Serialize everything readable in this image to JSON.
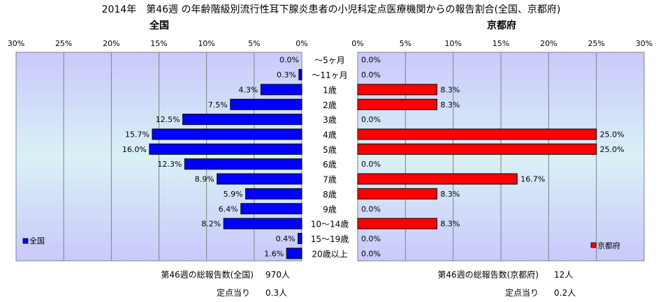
{
  "title": "2014年　第46週 の年齢階級別流行性耳下腺炎患者の小児科定点医療機関からの報告割合(全国、京都府)",
  "chart_data": [
    {
      "type": "bar",
      "orientation": "horizontal",
      "direction": "right-to-left",
      "title": "全国",
      "categories": [
        "～5ヶ月",
        "～11ヶ月",
        "1歳",
        "2歳",
        "3歳",
        "4歳",
        "5歳",
        "6歳",
        "7歳",
        "8歳",
        "9歳",
        "10～14歳",
        "15～19歳",
        "20歳以上"
      ],
      "series": [
        {
          "name": "全国",
          "color": "#0000ff",
          "values": [
            0.0,
            0.3,
            4.3,
            7.5,
            12.5,
            15.7,
            16.0,
            12.3,
            8.9,
            5.9,
            6.4,
            8.2,
            0.4,
            1.6
          ],
          "labels": [
            "0.0%",
            "0.3%",
            "4.3%",
            "7.5%",
            "12.5%",
            "15.7%",
            "16.0%",
            "12.3%",
            "8.9%",
            "5.9%",
            "6.4%",
            "8.2%",
            "0.4%",
            "1.6%"
          ]
        }
      ],
      "xlim": [
        0,
        30
      ],
      "ticks": [
        "30%",
        "25%",
        "20%",
        "15%",
        "10%",
        "5%",
        "0%"
      ],
      "grid": true,
      "legend_position": "bottom-left"
    },
    {
      "type": "bar",
      "orientation": "horizontal",
      "direction": "left-to-right",
      "title": "京都府",
      "categories": [
        "～5ヶ月",
        "～11ヶ月",
        "1歳",
        "2歳",
        "3歳",
        "4歳",
        "5歳",
        "6歳",
        "7歳",
        "8歳",
        "9歳",
        "10～14歳",
        "15～19歳",
        "20歳以上"
      ],
      "series": [
        {
          "name": "京都府",
          "color": "#ff0000",
          "values": [
            0.0,
            0.0,
            8.3,
            8.3,
            0.0,
            25.0,
            25.0,
            0.0,
            16.7,
            8.3,
            0.0,
            8.3,
            0.0,
            0.0
          ],
          "labels": [
            "0.0%",
            "0.0%",
            "8.3%",
            "8.3%",
            "0.0%",
            "25.0%",
            "25.0%",
            "0.0%",
            "16.7%",
            "8.3%",
            "0.0%",
            "8.3%",
            "0.0%",
            "0.0%"
          ]
        }
      ],
      "xlim": [
        0,
        30
      ],
      "ticks": [
        "0%",
        "5%",
        "10%",
        "15%",
        "20%",
        "25%",
        "30%"
      ],
      "grid": true,
      "legend_position": "bottom-right"
    }
  ],
  "footer": {
    "national_total_label": "第46週の総報告数(全国)",
    "national_total_value": "970人",
    "national_per_label": "定点当り",
    "national_per_value": "0.3人",
    "kyoto_total_label": "第46週の総報告数(京都府)",
    "kyoto_total_value": "12人",
    "kyoto_per_label": "定点当り",
    "kyoto_per_value": "0.2人"
  }
}
